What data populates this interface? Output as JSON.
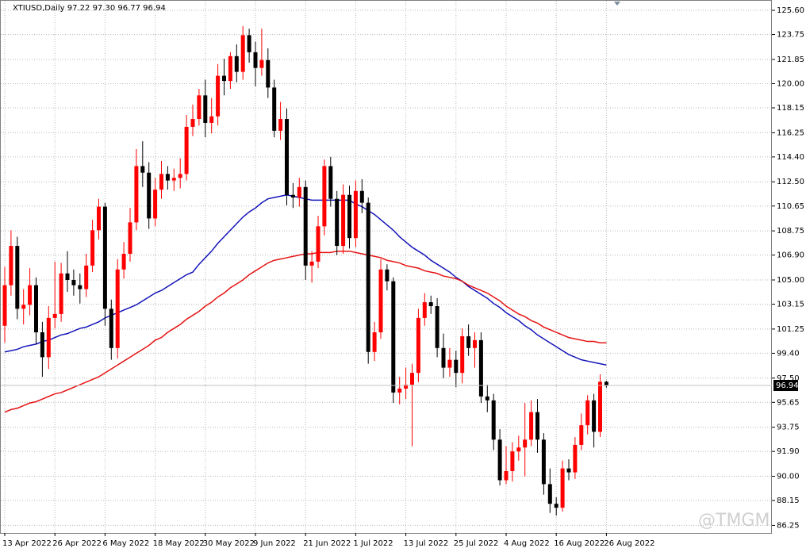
{
  "chart_data": {
    "type": "candlestick",
    "header": "XTIUSD,Daily  97.22 97.30 96.77 96.94",
    "watermark": "@TMGM",
    "categories": [
      "13 Apr 2022",
      null,
      null,
      null,
      null,
      null,
      null,
      null,
      "26 Apr 2022",
      null,
      null,
      null,
      null,
      null,
      null,
      null,
      "6 May 2022",
      null,
      null,
      null,
      null,
      null,
      null,
      null,
      "18 May 2022",
      null,
      null,
      null,
      null,
      null,
      null,
      null,
      "30 May 2022",
      null,
      null,
      null,
      null,
      null,
      null,
      null,
      "9 Jun 2022",
      null,
      null,
      null,
      null,
      null,
      null,
      null,
      "21 Jun 2022",
      null,
      null,
      null,
      null,
      null,
      null,
      null,
      "1 Jul 2022",
      null,
      null,
      null,
      null,
      null,
      null,
      null,
      "13 Jul 2022",
      null,
      null,
      null,
      null,
      null,
      null,
      null,
      "25 Jul 2022",
      null,
      null,
      null,
      null,
      null,
      null,
      null,
      "4 Aug 2022",
      null,
      null,
      null,
      null,
      null,
      null,
      null,
      "16 Aug 2022",
      null,
      null,
      null,
      null,
      null,
      null,
      null,
      "26 Aug 2022"
    ],
    "open": [
      101.5,
      104.6,
      107.6,
      102.8,
      103.1,
      104.6,
      101.0,
      99.1,
      102.1,
      102.4,
      105.5,
      105.0,
      104.6,
      104.3,
      106.1,
      108.8,
      110.6,
      102.8,
      99.8,
      105.8,
      107.0,
      109.4,
      113.7,
      113.2,
      109.7,
      111.9,
      113.1,
      112.6,
      112.8,
      113.1,
      116.7,
      117.3,
      119.1,
      117.0,
      117.5,
      120.6,
      120.2,
      122.1,
      120.9,
      123.7,
      122.4,
      121.2,
      121.8,
      119.7,
      116.4,
      117.3,
      111.5,
      111.3,
      112.1,
      106.1,
      106.4,
      109.1,
      113.7,
      111.2,
      107.6,
      111.5,
      108.2,
      111.8,
      110.9,
      99.5,
      101.0,
      105.8,
      104.9,
      96.4,
      96.7,
      97.0,
      97.9,
      102.1,
      103.3,
      103.0,
      99.8,
      98.3,
      98.9,
      97.9,
      100.7,
      99.8,
      100.4,
      96.1,
      95.8,
      92.8,
      89.7,
      90.4,
      91.9,
      92.2,
      92.8,
      94.9,
      92.8,
      89.4,
      87.9,
      87.6,
      90.6,
      90.3,
      92.4,
      93.9,
      95.8,
      93.4,
      97.22
    ],
    "high": [
      106.0,
      108.8,
      108.3,
      104.3,
      105.9,
      105.2,
      101.8,
      103.0,
      106.4,
      106.3,
      107.2,
      105.8,
      105.5,
      107.0,
      109.6,
      111.2,
      110.9,
      103.5,
      106.6,
      107.9,
      110.5,
      115.0,
      115.6,
      114.0,
      112.8,
      114.1,
      113.7,
      113.5,
      114.3,
      117.6,
      118.4,
      119.6,
      120.3,
      118.9,
      121.5,
      121.9,
      122.4,
      123.0,
      124.4,
      124.2,
      123.2,
      124.2,
      122.7,
      120.3,
      118.6,
      118.1,
      112.4,
      112.8,
      112.6,
      107.2,
      109.9,
      114.2,
      114.4,
      111.8,
      112.3,
      112.2,
      112.6,
      112.7,
      111.3,
      101.8,
      106.6,
      106.2,
      105.2,
      97.6,
      98.3,
      98.6,
      102.8,
      104.0,
      103.8,
      103.6,
      100.9,
      99.8,
      99.6,
      101.3,
      101.6,
      101.0,
      101.0,
      97.0,
      96.3,
      93.6,
      92.3,
      92.6,
      93.1,
      95.6,
      95.8,
      95.9,
      93.3,
      90.6,
      88.4,
      91.2,
      91.3,
      93.0,
      94.8,
      96.2,
      96.3,
      97.8,
      97.3
    ],
    "low": [
      100.2,
      103.8,
      102.0,
      101.6,
      102.3,
      100.1,
      97.6,
      98.2,
      101.3,
      101.8,
      104.1,
      103.8,
      103.2,
      103.7,
      105.6,
      108.1,
      101.5,
      98.9,
      99.0,
      105.1,
      106.4,
      108.8,
      112.1,
      108.9,
      109.1,
      111.2,
      111.9,
      111.8,
      112.0,
      112.6,
      116.0,
      116.8,
      115.9,
      116.2,
      116.8,
      119.1,
      119.6,
      120.1,
      120.3,
      121.6,
      119.8,
      120.6,
      118.9,
      115.9,
      115.7,
      110.7,
      110.5,
      110.6,
      105.0,
      104.8,
      105.9,
      108.4,
      110.6,
      106.9,
      107.0,
      107.4,
      107.5,
      110.1,
      98.6,
      98.8,
      100.5,
      104.2,
      95.6,
      95.5,
      95.9,
      92.3,
      97.2,
      101.5,
      102.4,
      99.1,
      97.5,
      97.6,
      96.8,
      97.1,
      99.2,
      98.3,
      95.6,
      94.9,
      92.0,
      89.3,
      89.4,
      89.6,
      91.2,
      90.0,
      92.3,
      91.8,
      88.6,
      87.2,
      87.0,
      87.3,
      89.7,
      89.8,
      92.0,
      93.2,
      92.2,
      93.0,
      96.77
    ],
    "close": [
      104.6,
      107.6,
      102.8,
      103.1,
      104.6,
      101.0,
      99.1,
      102.1,
      102.4,
      105.5,
      105.0,
      104.6,
      104.3,
      106.1,
      108.8,
      110.6,
      102.8,
      99.8,
      105.8,
      107.0,
      109.4,
      113.7,
      113.2,
      109.7,
      111.9,
      113.1,
      112.6,
      112.8,
      113.1,
      116.7,
      117.3,
      119.1,
      117.0,
      117.5,
      120.6,
      120.2,
      122.1,
      120.9,
      123.7,
      122.4,
      121.2,
      121.8,
      119.7,
      116.4,
      117.3,
      111.5,
      111.3,
      112.1,
      106.1,
      106.4,
      109.1,
      113.7,
      111.2,
      107.6,
      111.5,
      108.2,
      111.8,
      110.9,
      99.5,
      101.0,
      105.8,
      104.9,
      96.4,
      96.7,
      97.0,
      97.9,
      102.1,
      103.3,
      103.0,
      99.8,
      98.3,
      98.9,
      97.9,
      100.7,
      99.8,
      100.4,
      96.1,
      95.8,
      92.8,
      89.7,
      90.4,
      91.9,
      92.2,
      92.8,
      94.9,
      92.8,
      89.4,
      87.9,
      87.6,
      90.6,
      90.3,
      92.4,
      93.9,
      95.8,
      93.4,
      97.22,
      96.94
    ],
    "up_color": "#ff0000",
    "down_color": "#000000",
    "lines": [
      {
        "color": "#1414b8",
        "values": [
          99.5,
          99.6,
          99.7,
          99.9,
          100.0,
          100.1,
          100.3,
          100.4,
          100.6,
          100.8,
          100.9,
          101.1,
          101.3,
          101.4,
          101.6,
          101.8,
          102.1,
          102.3,
          102.5,
          102.7,
          102.9,
          103.1,
          103.4,
          103.7,
          104.0,
          104.2,
          104.5,
          104.8,
          105.1,
          105.4,
          105.6,
          106.2,
          106.7,
          107.2,
          107.8,
          108.3,
          108.8,
          109.3,
          109.8,
          110.2,
          110.5,
          110.9,
          111.2,
          111.3,
          111.4,
          111.5,
          111.4,
          111.3,
          111.2,
          111.1,
          111.1,
          111.1,
          111.1,
          111.1,
          111.1,
          111.1,
          110.8,
          110.6,
          110.3,
          110.0,
          109.6,
          109.2,
          108.8,
          108.3,
          107.9,
          107.5,
          107.2,
          106.9,
          106.5,
          106.2,
          105.9,
          105.6,
          105.2,
          104.9,
          104.5,
          104.2,
          103.9,
          103.6,
          103.2,
          102.9,
          102.5,
          102.2,
          101.9,
          101.5,
          101.2,
          100.8,
          100.5,
          100.2,
          99.9,
          99.6,
          99.3,
          99.1,
          98.9,
          98.8,
          98.7,
          98.6,
          98.5
        ]
      },
      {
        "color": "#e51414",
        "values": [
          94.9,
          95.1,
          95.2,
          95.4,
          95.6,
          95.7,
          95.9,
          96.1,
          96.3,
          96.4,
          96.6,
          96.8,
          97.0,
          97.2,
          97.4,
          97.6,
          97.9,
          98.2,
          98.5,
          98.8,
          99.1,
          99.4,
          99.7,
          100.0,
          100.4,
          100.6,
          101.0,
          101.3,
          101.6,
          102.0,
          102.3,
          102.6,
          103.0,
          103.3,
          103.7,
          104.0,
          104.4,
          104.7,
          105.0,
          105.4,
          105.7,
          106.0,
          106.3,
          106.5,
          106.6,
          106.7,
          106.8,
          106.9,
          107.0,
          107.0,
          107.1,
          107.1,
          107.1,
          107.2,
          107.2,
          107.2,
          107.1,
          107.0,
          106.9,
          106.8,
          106.7,
          106.5,
          106.4,
          106.3,
          106.1,
          106.0,
          105.9,
          105.7,
          105.6,
          105.5,
          105.3,
          105.2,
          105.1,
          104.9,
          104.6,
          104.4,
          104.2,
          104.0,
          103.7,
          103.4,
          103.0,
          102.7,
          102.4,
          102.2,
          101.9,
          101.7,
          101.4,
          101.2,
          101.0,
          100.8,
          100.6,
          100.5,
          100.4,
          100.3,
          100.3,
          100.2,
          100.2
        ]
      }
    ],
    "ylim": [
      85.67,
      126.39
    ],
    "yticks": [
      {
        "value": 125.6,
        "label": "125.60"
      },
      123.75,
      121.85,
      {
        "value": 120,
        "label": "120.00"
      },
      118.15,
      116.25,
      {
        "value": 114.4,
        "label": "114.40"
      },
      {
        "value": 112.5,
        "label": "112.50"
      },
      110.65,
      108.75,
      {
        "value": 106.9,
        "label": "106.90"
      },
      {
        "value": 105,
        "label": "105.00"
      },
      103.15,
      101.25,
      {
        "value": 99.4,
        "label": "99.40"
      },
      {
        "value": 97.5,
        "label": "97.50"
      },
      95.65,
      93.75,
      {
        "value": 91.9,
        "label": "91.90"
      },
      {
        "value": 90,
        "label": "90.00"
      },
      88.15,
      86.25
    ],
    "grid": true
  }
}
